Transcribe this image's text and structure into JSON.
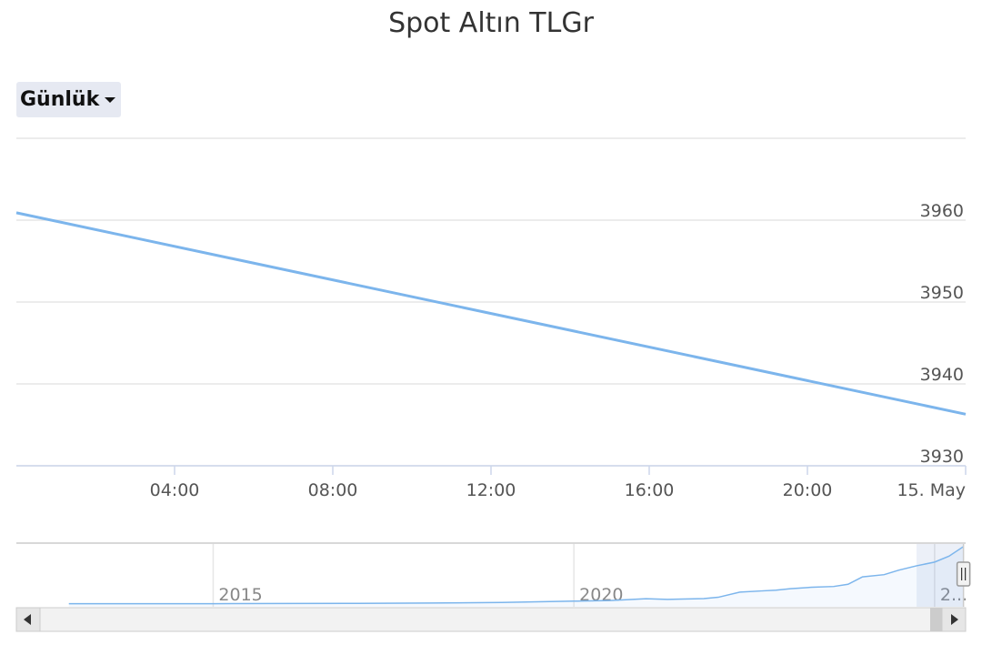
{
  "chart_data": {
    "type": "line",
    "title": "Spot Altın TLGr",
    "range_selector": {
      "selected": "Günlük"
    },
    "xlabel": "",
    "ylabel": "",
    "x_tick_labels": [
      "04:00",
      "08:00",
      "12:00",
      "16:00",
      "20:00",
      "15. May"
    ],
    "x_ticks": [
      4,
      8,
      12,
      16,
      20,
      24
    ],
    "xlim": [
      0,
      24
    ],
    "y_ticks": [
      3930,
      3940,
      3950,
      3960
    ],
    "ylim": [
      3930,
      3970
    ],
    "grid": true,
    "series": [
      {
        "x": [
          0,
          24
        ],
        "y": [
          3960.9,
          3936.3
        ],
        "color": "#7cb5ec"
      }
    ],
    "navigator": {
      "tick_labels": [
        "2015",
        "2020",
        "2..."
      ],
      "x_years": [
        2013.0,
        2014.0,
        2015.0,
        2016.0,
        2017.0,
        2018.0,
        2019.0,
        2020.0,
        2020.5,
        2021.0,
        2021.3,
        2021.5,
        2021.8,
        2022.0,
        2022.3,
        2022.6,
        2022.8,
        2023.0,
        2023.3,
        2023.6,
        2023.8,
        2024.0,
        2024.3,
        2024.5,
        2024.75,
        2025.0,
        2025.2,
        2025.4
      ],
      "values": [
        85,
        82,
        86,
        100,
        110,
        130,
        170,
        260,
        300,
        420,
        380,
        400,
        430,
        520,
        870,
        950,
        1000,
        1100,
        1200,
        1250,
        1400,
        1900,
        2050,
        2350,
        2650,
        2900,
        3300,
        3950
      ],
      "handle_year": 2025.4
    }
  }
}
